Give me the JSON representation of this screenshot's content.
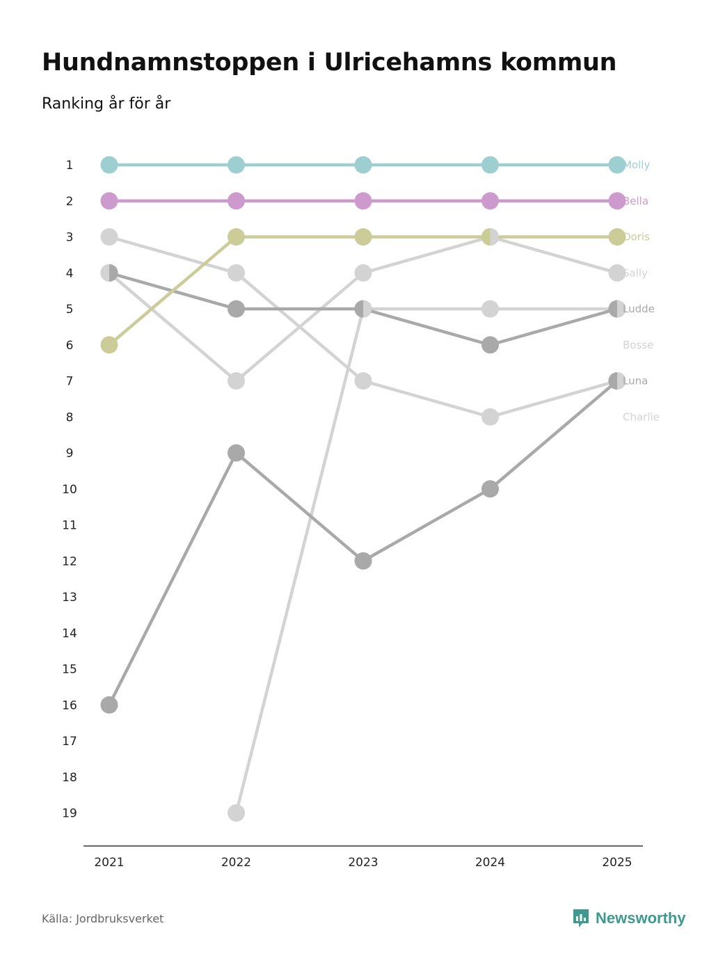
{
  "title": "Hundnamnstoppen i Ulricehamns kommun",
  "subtitle": "Ranking år för år",
  "source": "Källa: Jordbruksverket",
  "brand": "Newsworthy",
  "colors": {
    "Molly": "#9ecfd0",
    "Bella": "#cd9acd",
    "Doris": "#cccc99",
    "Sally": "#d3d3d3",
    "Ludde": "#a9a9a9",
    "Bosse": "#d3d3d3",
    "Luna": "#a9a9a9",
    "Charlie": "#d3d3d3",
    "brand": "#3e9a8f",
    "axis": "#333333"
  },
  "chart_data": {
    "type": "line",
    "title": "Hundnamnstoppen i Ulricehamns kommun",
    "subtitle": "Ranking år för år",
    "xlabel": "",
    "ylabel": "",
    "x": [
      "2021",
      "2022",
      "2023",
      "2024",
      "2025"
    ],
    "y_ticks": [
      "1",
      "2",
      "3",
      "4",
      "5",
      "6",
      "7",
      "8",
      "9",
      "10",
      "11",
      "12",
      "13",
      "14",
      "15",
      "16",
      "17",
      "18",
      "19"
    ],
    "ylim": [
      1,
      19
    ],
    "y_inverted": true,
    "series": [
      {
        "name": "Molly",
        "values": [
          1,
          1,
          1,
          1,
          1
        ]
      },
      {
        "name": "Bella",
        "values": [
          2,
          2,
          2,
          2,
          2
        ]
      },
      {
        "name": "Doris",
        "values": [
          6,
          3,
          3,
          3,
          3
        ]
      },
      {
        "name": "Sally",
        "values": [
          4,
          7,
          4,
          3,
          4
        ]
      },
      {
        "name": "Ludde",
        "values": [
          4,
          5,
          5,
          6,
          5
        ]
      },
      {
        "name": "Bosse",
        "values": [
          null,
          19,
          5,
          5,
          5
        ]
      },
      {
        "name": "Luna",
        "values": [
          16,
          9,
          12,
          10,
          7
        ]
      },
      {
        "name": "Charlie",
        "values": [
          3,
          4,
          7,
          8,
          7
        ]
      }
    ],
    "end_labels": [
      "Molly",
      "Bella",
      "Doris",
      "Sally",
      "Ludde",
      "Bosse",
      "Luna",
      "Charlie"
    ],
    "end_label_ranks": [
      1,
      2,
      3,
      4,
      5,
      6,
      7,
      8
    ]
  }
}
